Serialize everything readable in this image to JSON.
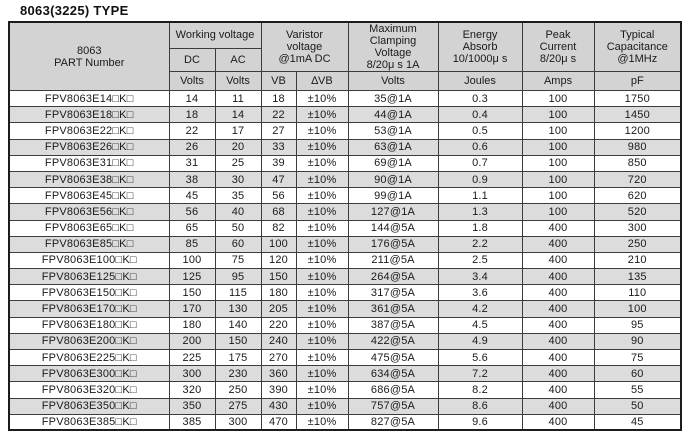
{
  "title": "8063(3225) TYPE",
  "colors": {
    "page_bg": "#ffffff",
    "header_bg": "#d3d3d3",
    "row_alt_bg": "#dcdcdc",
    "border": "#3c3c3c",
    "outer_border": "#1c1c1c",
    "text": "#1a1a1a"
  },
  "table": {
    "header": {
      "part_number": "8063\nPART Number",
      "working_voltage": "Working voltage",
      "dc": "DC",
      "ac": "AC",
      "varistor_voltage": "Varistor\nvoltage\n@1mA DC",
      "max_clamping": "Maximum\nClamping\nVoltage\n8/20μ s 1A",
      "energy_absorb": "Energy\nAbsorb\n10/1000μ s",
      "peak_current": "Peak\nCurrent\n8/20μ s",
      "typical_capacitance": "Typical\nCapacitance\n@1MHz"
    },
    "units": [
      "Volts",
      "Volts",
      "VB",
      "∆VB",
      "Volts",
      "Joules",
      "Amps",
      "pF"
    ],
    "rows": [
      [
        "FPV8063E14□K□",
        "14",
        "11",
        "18",
        "±10%",
        "35@1A",
        "0.3",
        "100",
        "1750"
      ],
      [
        "FPV8063E18□K□",
        "18",
        "14",
        "22",
        "±10%",
        "44@1A",
        "0.4",
        "100",
        "1450"
      ],
      [
        "FPV8063E22□K□",
        "22",
        "17",
        "27",
        "±10%",
        "53@1A",
        "0.5",
        "100",
        "1200"
      ],
      [
        "FPV8063E26□K□",
        "26",
        "20",
        "33",
        "±10%",
        "63@1A",
        "0.6",
        "100",
        "980"
      ],
      [
        "FPV8063E31□K□",
        "31",
        "25",
        "39",
        "±10%",
        "69@1A",
        "0.7",
        "100",
        "850"
      ],
      [
        "FPV8063E38□K□",
        "38",
        "30",
        "47",
        "±10%",
        "90@1A",
        "0.9",
        "100",
        "720"
      ],
      [
        "FPV8063E45□K□",
        "45",
        "35",
        "56",
        "±10%",
        "99@1A",
        "1.1",
        "100",
        "620"
      ],
      [
        "FPV8063E56□K□",
        "56",
        "40",
        "68",
        "±10%",
        "127@1A",
        "1.3",
        "100",
        "520"
      ],
      [
        "FPV8063E65□K□",
        "65",
        "50",
        "82",
        "±10%",
        "144@5A",
        "1.8",
        "400",
        "300"
      ],
      [
        "FPV8063E85□K□",
        "85",
        "60",
        "100",
        "±10%",
        "176@5A",
        "2.2",
        "400",
        "250"
      ],
      [
        "FPV8063E100□K□",
        "100",
        "75",
        "120",
        "±10%",
        "211@5A",
        "2.5",
        "400",
        "210"
      ],
      [
        "FPV8063E125□K□",
        "125",
        "95",
        "150",
        "±10%",
        "264@5A",
        "3.4",
        "400",
        "135"
      ],
      [
        "FPV8063E150□K□",
        "150",
        "115",
        "180",
        "±10%",
        "317@5A",
        "3.6",
        "400",
        "110"
      ],
      [
        "FPV8063E170□K□",
        "170",
        "130",
        "205",
        "±10%",
        "361@5A",
        "4.2",
        "400",
        "100"
      ],
      [
        "FPV8063E180□K□",
        "180",
        "140",
        "220",
        "±10%",
        "387@5A",
        "4.5",
        "400",
        "95"
      ],
      [
        "FPV8063E200□K□",
        "200",
        "150",
        "240",
        "±10%",
        "422@5A",
        "4.9",
        "400",
        "90"
      ],
      [
        "FPV8063E225□K□",
        "225",
        "175",
        "270",
        "±10%",
        "475@5A",
        "5.6",
        "400",
        "75"
      ],
      [
        "FPV8063E300□K□",
        "300",
        "230",
        "360",
        "±10%",
        "634@5A",
        "7.2",
        "400",
        "60"
      ],
      [
        "FPV8063E320□K□",
        "320",
        "250",
        "390",
        "±10%",
        "686@5A",
        "8.2",
        "400",
        "55"
      ],
      [
        "FPV8063E350□K□",
        "350",
        "275",
        "430",
        "±10%",
        "757@5A",
        "8.6",
        "400",
        "50"
      ],
      [
        "FPV8063E385□K□",
        "385",
        "300",
        "470",
        "±10%",
        "827@5A",
        "9.6",
        "400",
        "45"
      ]
    ]
  }
}
